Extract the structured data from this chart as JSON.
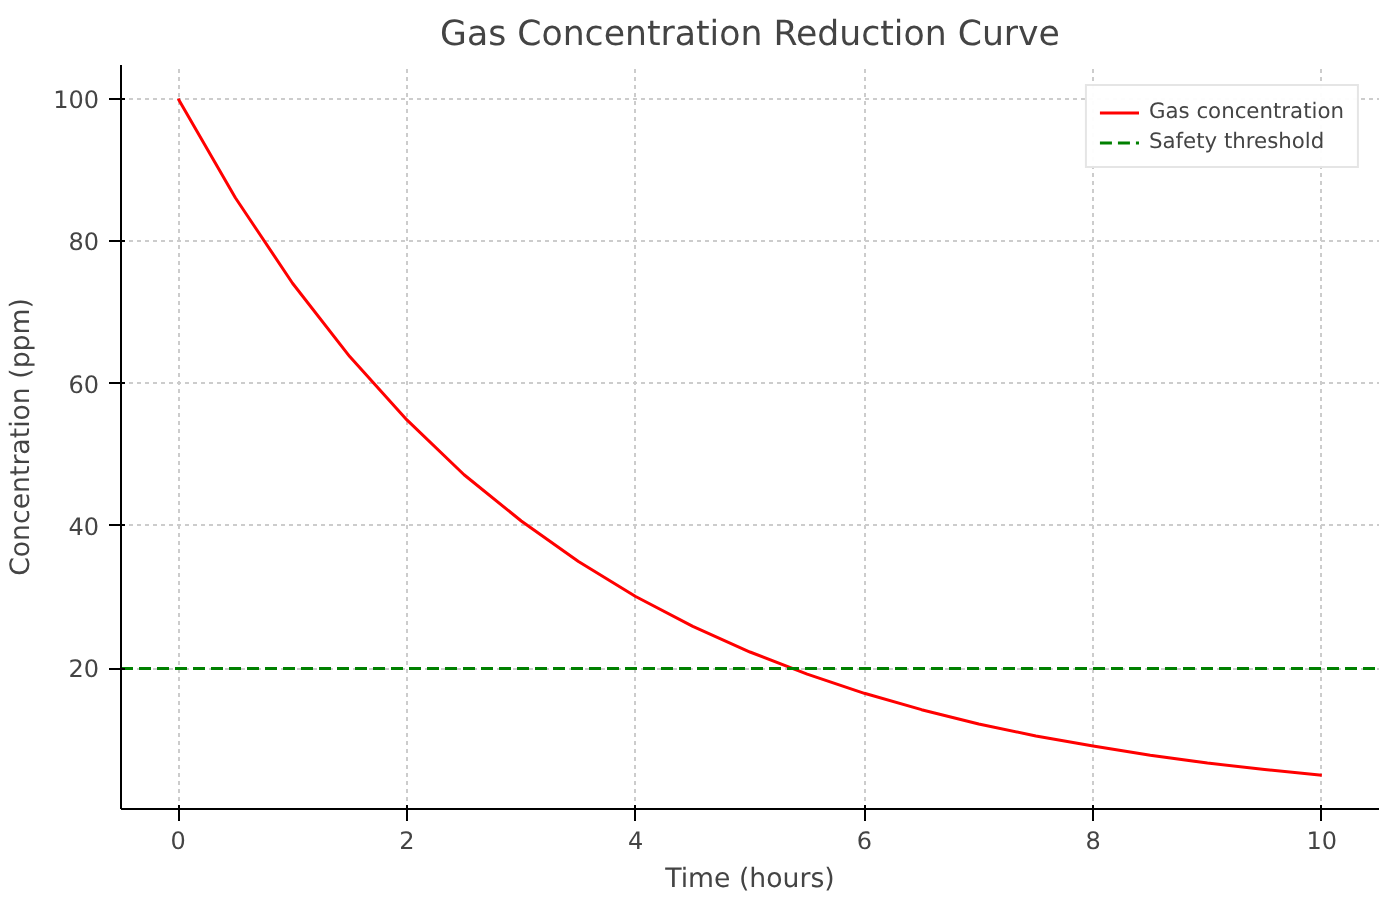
{
  "chart_data": {
    "type": "line",
    "title": "Gas Concentration Reduction Curve",
    "xlabel": "Time (hours)",
    "ylabel": "Concentration (ppm)",
    "x": [
      0,
      0.5,
      1,
      1.5,
      2,
      2.5,
      3,
      3.5,
      4,
      4.5,
      5,
      5.5,
      6,
      6.5,
      7,
      7.5,
      8,
      8.5,
      9,
      9.5,
      10
    ],
    "series": [
      {
        "name": "Gas concentration",
        "color": "#ff0000",
        "values": [
          100,
          86.1,
          74.1,
          63.8,
          54.9,
          47.2,
          40.7,
          35.0,
          30.1,
          25.9,
          22.3,
          19.2,
          16.5,
          14.2,
          12.2,
          10.5,
          9.1,
          7.8,
          6.7,
          5.8,
          5.0
        ]
      }
    ],
    "ref_lines": [
      {
        "axis": "y",
        "value": 20,
        "label": "Safety threshold",
        "color": "#008000",
        "line_style": "dashed"
      }
    ],
    "xlim": [
      -0.5,
      10.5
    ],
    "ylim": [
      0.25,
      104.75
    ],
    "xticks": [
      0,
      2,
      4,
      6,
      8,
      10
    ],
    "yticks": [
      20,
      40,
      60,
      80,
      100
    ],
    "grid": true,
    "legend": "top right",
    "line_style": "solid",
    "marker": "none"
  }
}
